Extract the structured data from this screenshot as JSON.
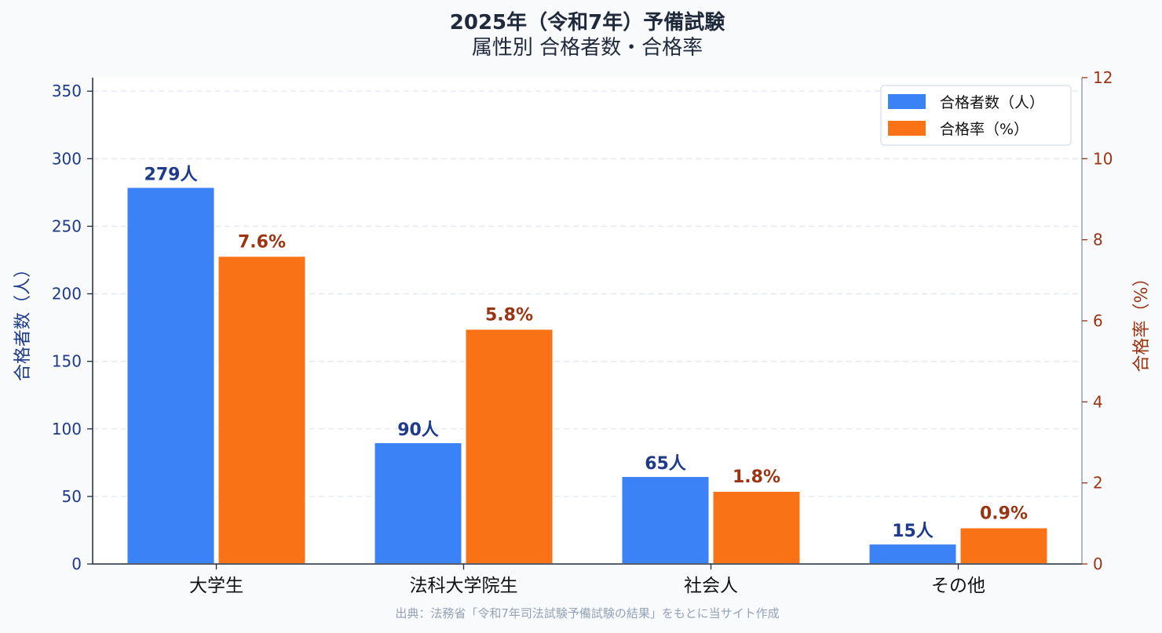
{
  "chart_data": {
    "type": "bar",
    "title": "2025年（令和7年）予備試験",
    "subtitle": "属性別 合格者数・合格率",
    "categories": [
      "大学生",
      "法科大学院生",
      "社会人",
      "その他"
    ],
    "series": [
      {
        "name": "合格者数（人）",
        "axis": "left",
        "color": "#3b82f6",
        "values": [
          279,
          90,
          65,
          15
        ],
        "labels": [
          "279人",
          "90人",
          "65人",
          "15人"
        ]
      },
      {
        "name": "合格率（%）",
        "axis": "right",
        "color": "#f97316",
        "values": [
          7.6,
          5.8,
          1.8,
          0.9
        ],
        "labels": [
          "7.6%",
          "5.8%",
          "1.8%",
          "0.9%"
        ]
      }
    ],
    "ylabel_left": "合格者数（人）",
    "ylabel_right": "合格率（%）",
    "ylim_left": [
      0,
      360
    ],
    "yticks_left": [
      0,
      50,
      100,
      150,
      200,
      250,
      300,
      350
    ],
    "ylim_right": [
      0,
      12
    ],
    "yticks_right": [
      0,
      2,
      4,
      6,
      8,
      10,
      12
    ],
    "grid": true,
    "legend_position": "top-right",
    "source": "出典：法務省「令和7年司法試験予備試験の結果」をもとに当サイト作成",
    "colors": {
      "left_axis": "#1e3a8a",
      "right_axis": "#9a3412",
      "count_label": "#1e3a8a",
      "rate_label": "#9a3412"
    }
  }
}
